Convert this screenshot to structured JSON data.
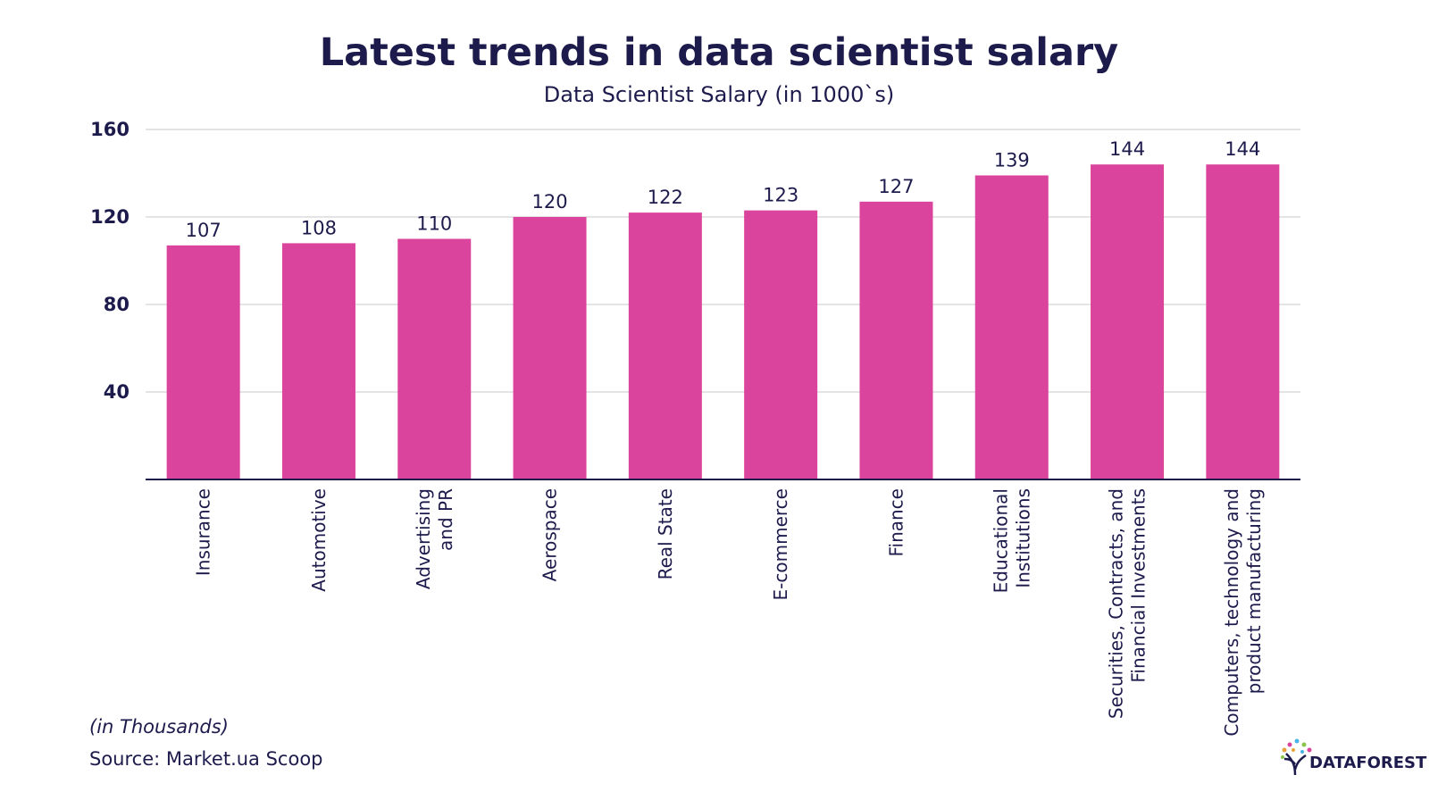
{
  "title": "Latest trends in data scientist salary",
  "subtitle": "Data Scientist Salary (in 1000`s)",
  "note": "(in Thousands)",
  "source": "Source: Market.ua Scoop",
  "brand": "DATAFOREST",
  "colors": {
    "bar": "#db449d",
    "text": "#1d1b4c",
    "grid": "#dcdcdc",
    "axis": "#1d1b4c"
  },
  "chart_data": {
    "type": "bar",
    "categories": [
      [
        "Insurance"
      ],
      [
        "Automotive"
      ],
      [
        "Advertising",
        "and PR"
      ],
      [
        "Aerospace"
      ],
      [
        "Real State"
      ],
      [
        "E-commerce"
      ],
      [
        "Finance"
      ],
      [
        "Educational",
        "Institutions"
      ],
      [
        "Securities, Contracts, and",
        "Financial Investments"
      ],
      [
        "Computers, technology and",
        "product manufacturing"
      ]
    ],
    "values": [
      107,
      108,
      110,
      120,
      122,
      123,
      127,
      139,
      144,
      144
    ],
    "ylim": [
      0,
      160
    ],
    "yticks": [
      40,
      80,
      120,
      160
    ],
    "grid": true,
    "xlabel": "",
    "ylabel": ""
  }
}
